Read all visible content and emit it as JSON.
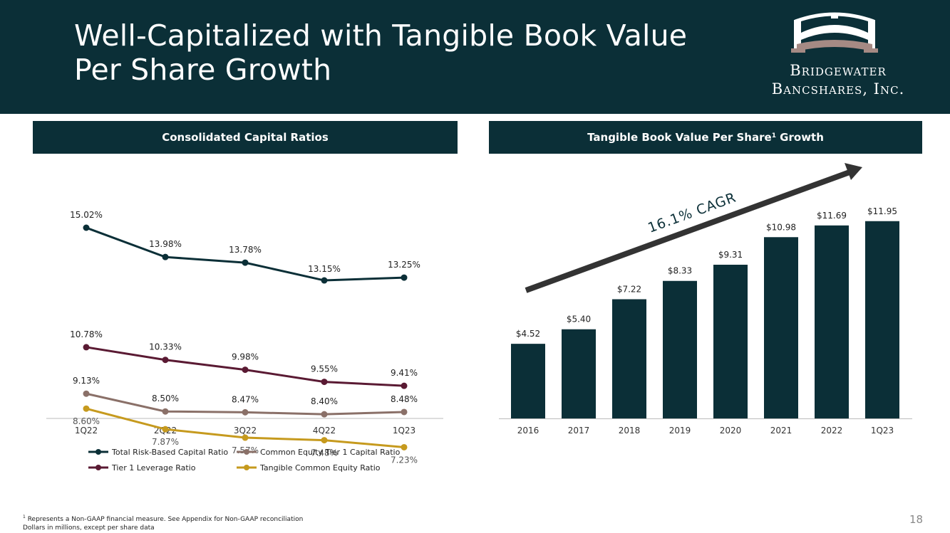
{
  "header": {
    "title_line1": "Well-Capitalized with Tangible Book Value",
    "title_line2": "Per Share Growth",
    "logo_line1": "Bridgewater",
    "logo_line2": "Bancshares, Inc."
  },
  "left_section_title": "Consolidated Capital Ratios",
  "right_section_title_main": "Tangible Book Value Per Share",
  "right_section_title_sup": "1",
  "right_section_title_tail": " Growth",
  "chart_data": [
    {
      "type": "line",
      "title": "Consolidated Capital Ratios",
      "categories": [
        "1Q22",
        "2Q22",
        "3Q22",
        "4Q22",
        "1Q23"
      ],
      "ylim": [
        6,
        16
      ],
      "series": [
        {
          "name": "Total Risk-Based Capital Ratio",
          "color": "#0b2f37",
          "values": [
            15.02,
            13.98,
            13.78,
            13.15,
            13.25
          ],
          "labels": [
            "15.02%",
            "13.98%",
            "13.78%",
            "13.15%",
            "13.25%"
          ]
        },
        {
          "name": "Tier 1 Leverage Ratio",
          "color": "#5a1a33",
          "values": [
            10.78,
            10.33,
            9.98,
            9.55,
            9.41
          ],
          "labels": [
            "10.78%",
            "10.33%",
            "9.98%",
            "9.55%",
            "9.41%"
          ]
        },
        {
          "name": "Common Equity Tier 1 Capital Ratio",
          "color": "#8a7068",
          "values": [
            9.13,
            8.5,
            8.47,
            8.4,
            8.48
          ],
          "labels": [
            "9.13%",
            "8.50%",
            "8.47%",
            "8.40%",
            "8.48%"
          ]
        },
        {
          "name": "Tangible Common Equity Ratio",
          "color": "#c69a1e",
          "values": [
            8.6,
            7.87,
            7.57,
            7.48,
            7.23
          ],
          "labels": [
            "8.60%",
            "7.87%",
            "7.57%",
            "7.48%",
            "7.23%"
          ]
        }
      ],
      "legend_position": "bottom"
    },
    {
      "type": "bar",
      "title": "Tangible Book Value Per Share Growth",
      "categories": [
        "2016",
        "2017",
        "2018",
        "2019",
        "2020",
        "2021",
        "2022",
        "1Q23"
      ],
      "values": [
        4.52,
        5.4,
        7.22,
        8.33,
        9.31,
        10.98,
        11.69,
        11.95
      ],
      "labels": [
        "$4.52",
        "$5.40",
        "$7.22",
        "$8.33",
        "$9.31",
        "$10.98",
        "$11.69",
        "$11.95"
      ],
      "color": "#0b2f37",
      "ylim": [
        0,
        12.5
      ],
      "annotation": "16.1% CAGR"
    }
  ],
  "footnote_sup": "1",
  "footnote_line1": " Represents a Non-GAAP financial measure. See Appendix for Non-GAAP reconciliation",
  "footnote_line2": "Dollars in millions, except per share data",
  "page_number": "18"
}
